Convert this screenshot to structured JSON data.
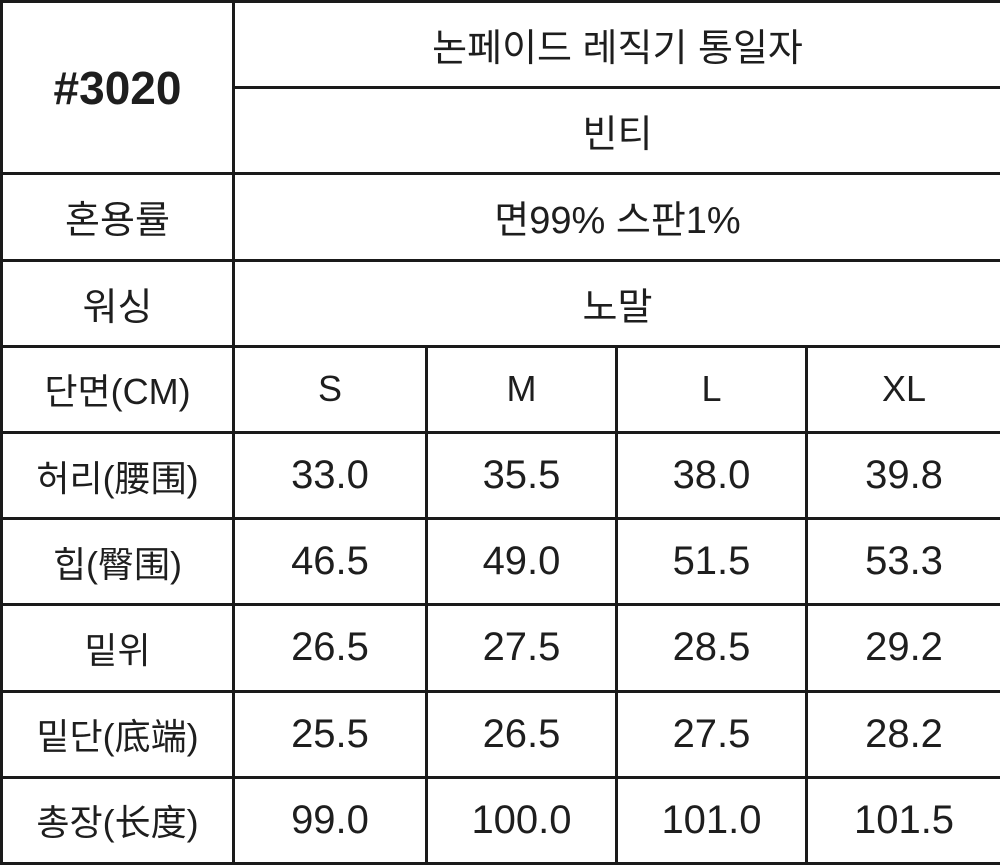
{
  "product": {
    "code": "#3020",
    "name": "논페이드 레직기 통일자",
    "fit": "빈티",
    "composition_label": "혼용률",
    "composition": "면99% 스판1%",
    "washing_label": "워싱",
    "washing": "노말"
  },
  "size_table": {
    "header_label": "단면(CM)",
    "sizes": [
      "S",
      "M",
      "L",
      "XL"
    ],
    "rows": [
      {
        "label": "허리(腰围)",
        "values": [
          "33.0",
          "35.5",
          "38.0",
          "39.8"
        ]
      },
      {
        "label": "힙(臀围)",
        "values": [
          "46.5",
          "49.0",
          "51.5",
          "53.3"
        ]
      },
      {
        "label": "밑위",
        "values": [
          "26.5",
          "27.5",
          "28.5",
          "29.2"
        ]
      },
      {
        "label": "밑단(底端)",
        "values": [
          "25.5",
          "26.5",
          "27.5",
          "28.2"
        ]
      },
      {
        "label": "총장(长度)",
        "values": [
          "99.0",
          "100.0",
          "101.0",
          "101.5"
        ]
      }
    ]
  }
}
